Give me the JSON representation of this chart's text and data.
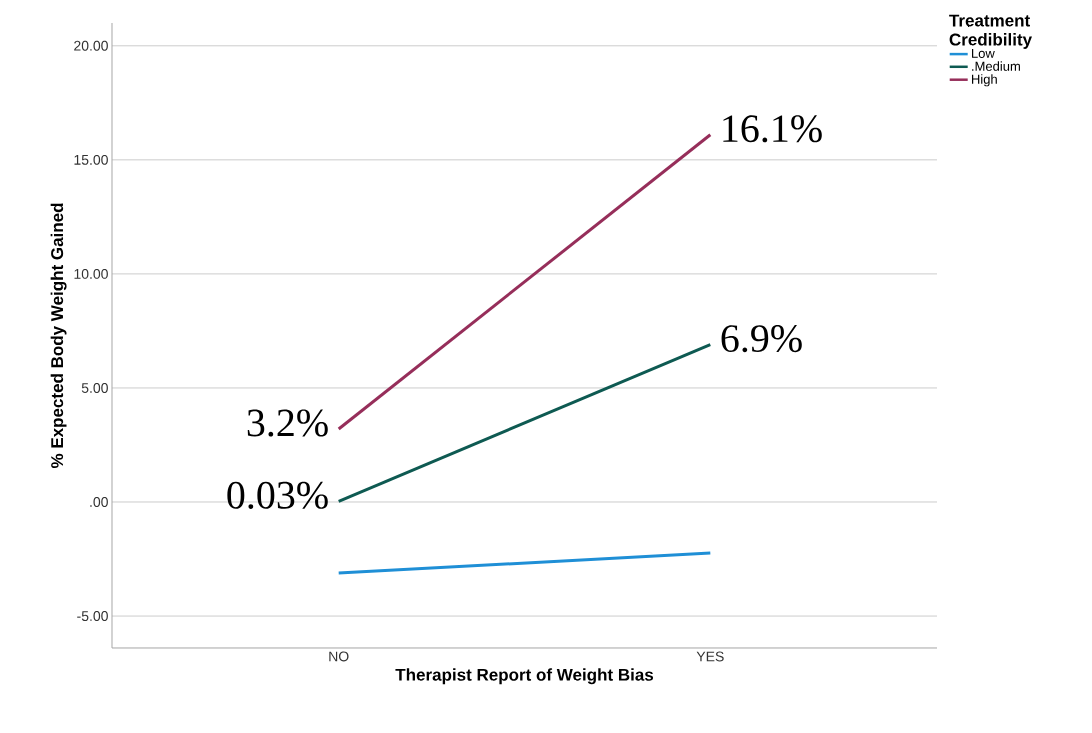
{
  "chart_data": {
    "type": "line",
    "xlabel": "Therapist Report of Weight Bias",
    "ylabel": "% Expected Body Weight Gained",
    "legend_title": "Treatment Credibility",
    "categories": [
      "NO",
      "YES"
    ],
    "series": [
      {
        "name": "Low",
        "color": "#1f8fd6",
        "values": [
          -3.11,
          -2.24
        ]
      },
      {
        "name": ".Medium",
        "color": "#0e5a52",
        "values": [
          0.03,
          6.9
        ],
        "value_labels": [
          "0.03%",
          "6.9%"
        ]
      },
      {
        "name": "High",
        "color": "#962e5a",
        "values": [
          3.2,
          16.1
        ],
        "value_labels": [
          "3.2%",
          "16.1%"
        ]
      }
    ],
    "ylim": [
      -6.4,
      21
    ],
    "yticks": [
      {
        "value": -5,
        "label": "-5.00"
      },
      {
        "value": 0,
        "label": ".00"
      },
      {
        "value": 5,
        "label": "5.00"
      },
      {
        "value": 10,
        "label": "10.00"
      },
      {
        "value": 15,
        "label": "15.00"
      },
      {
        "value": 20,
        "label": "20.00"
      }
    ],
    "grid": "y",
    "legend": "top right",
    "marker": "none",
    "line_style": "solid"
  }
}
